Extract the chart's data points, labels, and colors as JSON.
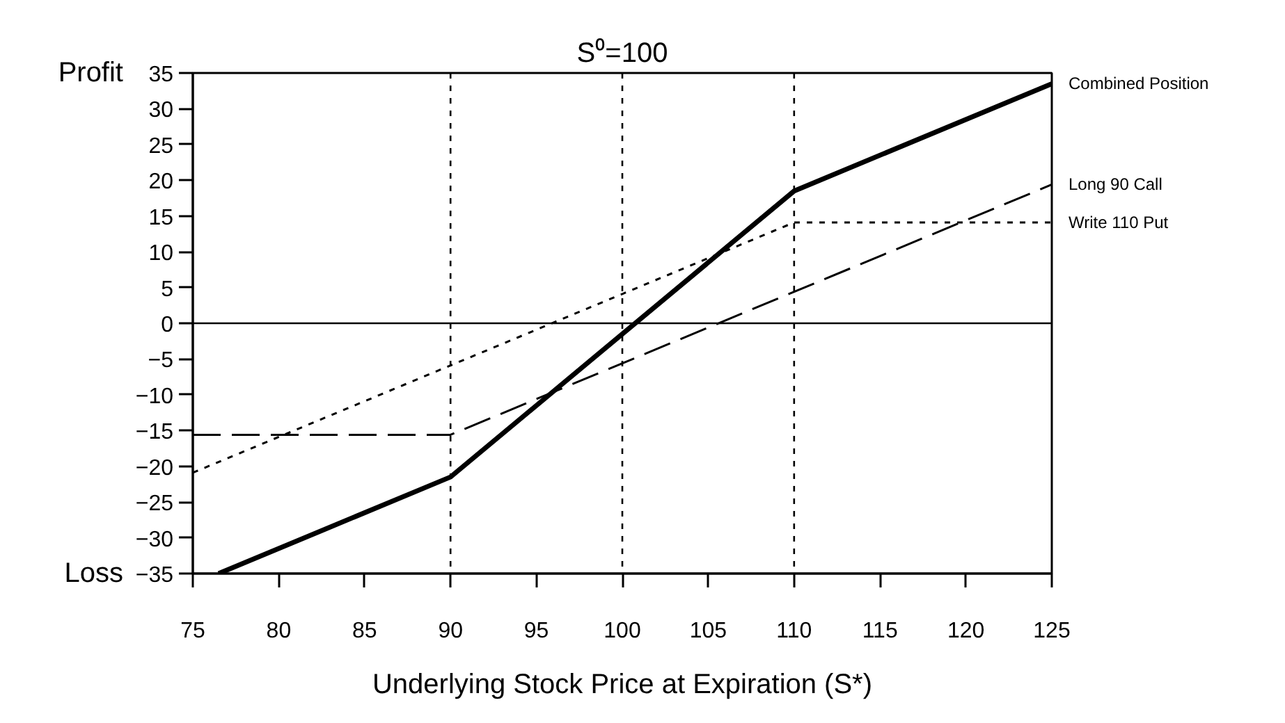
{
  "chart_data": {
    "type": "line",
    "title": "S⁰=100",
    "xlabel": "Underlying Stock Price at Expiration (S*)",
    "annotations": [
      "Profit",
      "Loss"
    ],
    "xlim": [
      75,
      125
    ],
    "ylim": [
      -35,
      35
    ],
    "xticks": [
      75,
      80,
      85,
      90,
      95,
      100,
      105,
      110,
      115,
      120,
      125
    ],
    "yticks": [
      -35,
      -30,
      -25,
      -20,
      -15,
      -10,
      -5,
      0,
      5,
      10,
      15,
      20,
      25,
      30,
      35
    ],
    "grid": false,
    "legend": false,
    "marker": "none",
    "ref_lines": [
      {
        "axis": "x",
        "value": 90,
        "line_style": "dotted",
        "color": "#000000"
      },
      {
        "axis": "x",
        "value": 100,
        "line_style": "dotted",
        "color": "#000000"
      },
      {
        "axis": "x",
        "value": 110,
        "line_style": "dotted",
        "color": "#000000"
      },
      {
        "axis": "y",
        "value": 0,
        "line_style": "solid",
        "color": "#000000"
      }
    ],
    "series": [
      {
        "name": "Combined Position",
        "color": "#000000",
        "line_style": "solid",
        "x": [
          76.5,
          90,
          110,
          125
        ],
        "values": [
          -35,
          -21.5,
          18.5,
          33.5
        ]
      },
      {
        "name": "Long 90 Call",
        "color": "#000000",
        "line_style": "dashed",
        "x": [
          75,
          90,
          125
        ],
        "values": [
          -15.6,
          -15.6,
          19.4
        ]
      },
      {
        "name": "Write 110 Put",
        "color": "#000000",
        "line_style": "dotted",
        "x": [
          75,
          110,
          125
        ],
        "values": [
          -20.9,
          14.1,
          14.1
        ]
      }
    ]
  }
}
